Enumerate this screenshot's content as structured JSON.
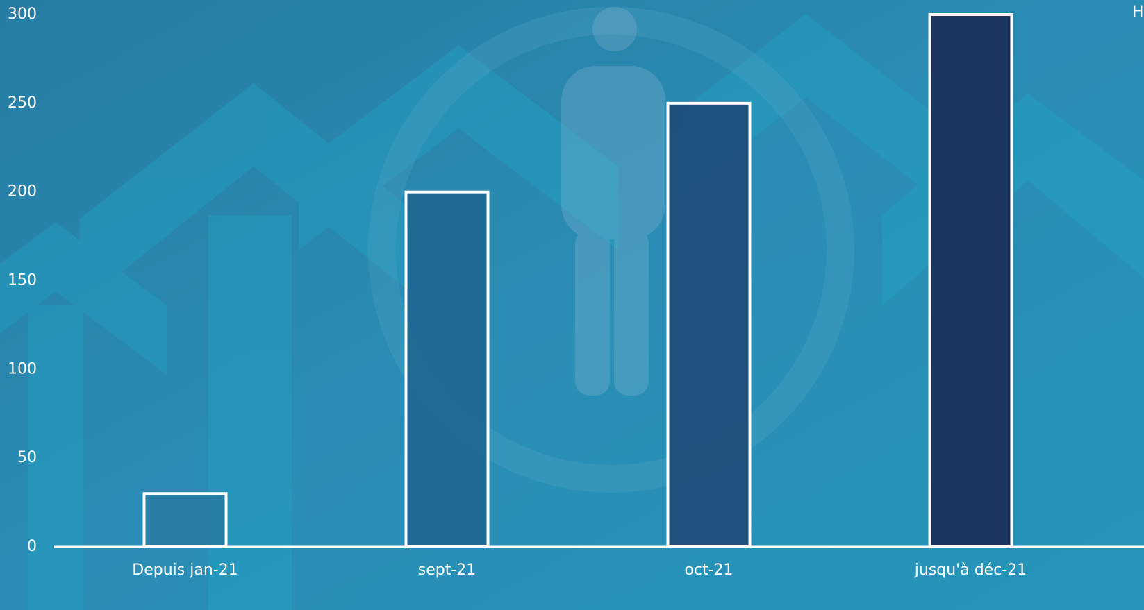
{
  "chart_data": {
    "type": "bar",
    "title": "H",
    "categories": [
      "Depuis jan-21",
      "sept-21",
      "oct-21",
      "jusqu'à déc-21"
    ],
    "values": [
      30,
      200,
      250,
      300
    ],
    "colors": [
      "#2a7ba2",
      "#1e6690",
      "#1e4a78",
      "#1b2a56"
    ],
    "ylim": [
      0,
      300
    ],
    "yticks": [
      0,
      50,
      100,
      150,
      200,
      250,
      300
    ],
    "grid": false
  }
}
